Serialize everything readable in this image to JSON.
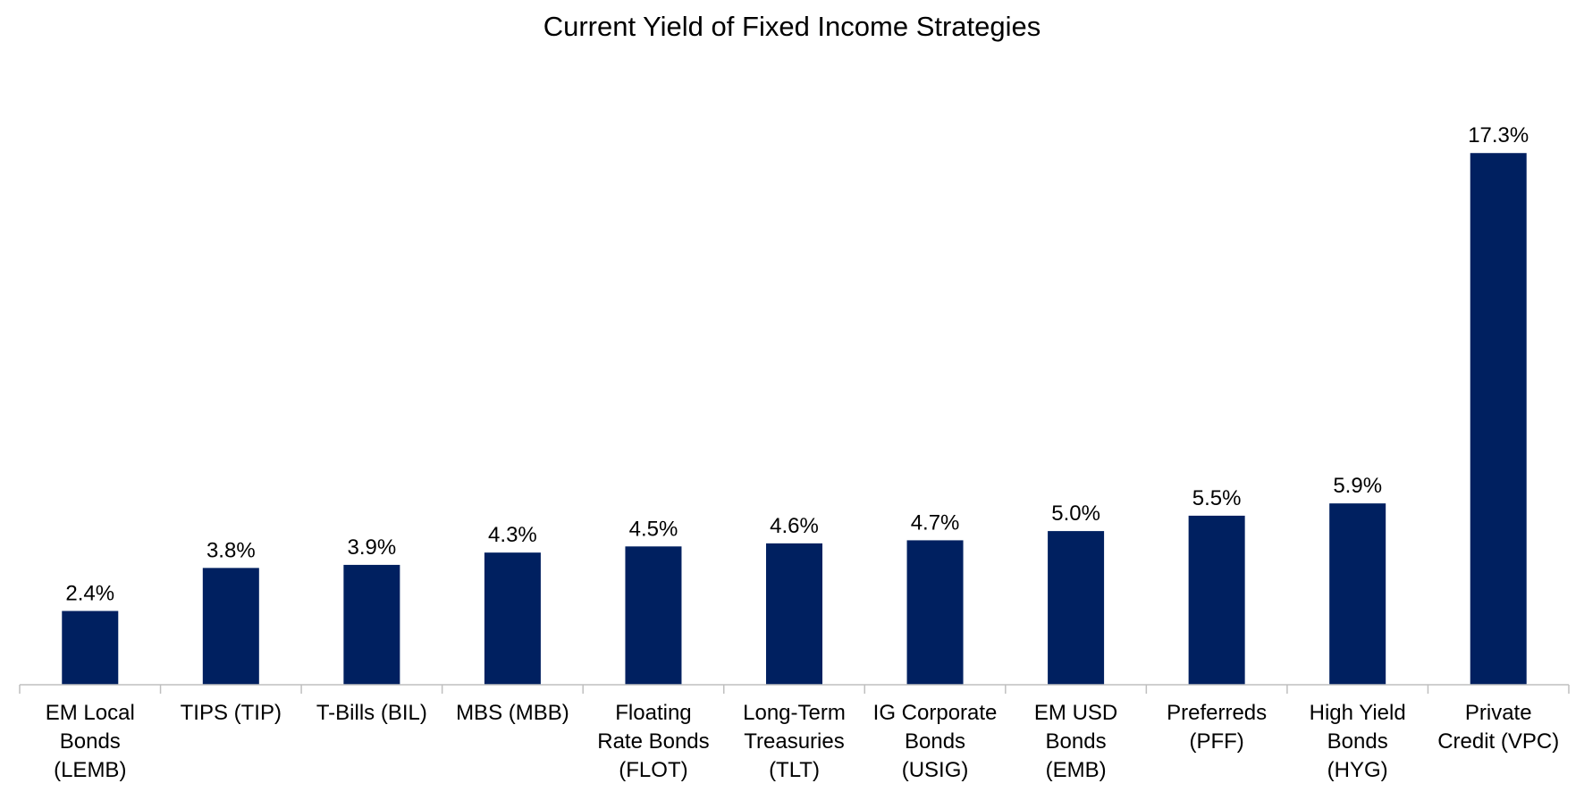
{
  "chart_data": {
    "type": "bar",
    "title": "Current Yield of Fixed Income Strategies",
    "xlabel": "",
    "ylabel": "",
    "ylim": [
      0,
      18
    ],
    "grid": false,
    "legend": "none",
    "bar_color": "#002060",
    "axis_color": "#bfbfbf",
    "categories": [
      [
        "EM Local",
        "Bonds",
        "(LEMB)"
      ],
      [
        "TIPS (TIP)"
      ],
      [
        "T-Bills (BIL)"
      ],
      [
        "MBS (MBB)"
      ],
      [
        "Floating",
        "Rate Bonds",
        "(FLOT)"
      ],
      [
        "Long-Term",
        "Treasuries",
        "(TLT)"
      ],
      [
        "IG Corporate",
        "Bonds",
        "(USIG)"
      ],
      [
        "EM USD",
        "Bonds",
        "(EMB)"
      ],
      [
        "Preferreds",
        "(PFF)"
      ],
      [
        "High Yield",
        "Bonds",
        "(HYG)"
      ],
      [
        "Private",
        "Credit (VPC)"
      ]
    ],
    "values": [
      2.4,
      3.8,
      3.9,
      4.3,
      4.5,
      4.6,
      4.7,
      5.0,
      5.5,
      5.9,
      17.3
    ],
    "data_labels": [
      "2.4%",
      "3.8%",
      "3.9%",
      "4.3%",
      "4.5%",
      "4.6%",
      "4.7%",
      "5.0%",
      "5.5%",
      "5.9%",
      "17.3%"
    ]
  }
}
